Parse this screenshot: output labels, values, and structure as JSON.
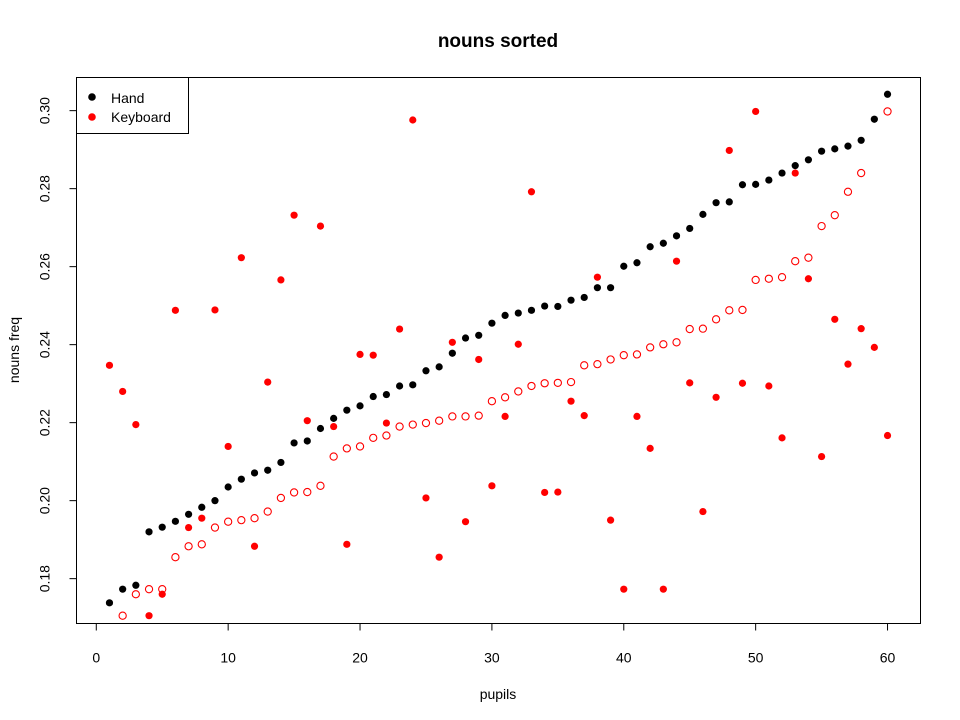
{
  "chart_data": {
    "type": "scatter",
    "title": "nouns sorted",
    "xlabel": "pupils",
    "ylabel": "nouns freq",
    "xlim": [
      -1.5,
      62.5
    ],
    "ylim": [
      0.1685,
      0.3085
    ],
    "x_ticks": [
      0,
      10,
      20,
      30,
      40,
      50,
      60
    ],
    "x_tick_labels": [
      "0",
      "10",
      "20",
      "30",
      "40",
      "50",
      "60"
    ],
    "y_ticks": [
      0.18,
      0.2,
      0.22,
      0.24,
      0.26,
      0.28,
      0.3
    ],
    "y_tick_labels": [
      "0.18",
      "0.20",
      "0.22",
      "0.24",
      "0.26",
      "0.28",
      "0.30"
    ],
    "legend": {
      "position": "top-left",
      "entries": [
        {
          "label": "Hand",
          "color": "#000000"
        },
        {
          "label": "Keyboard",
          "color": "#ff0000"
        }
      ]
    },
    "series": [
      {
        "name": "Hand",
        "color": "#000000",
        "marker": "filled-circle",
        "x": [
          1,
          2,
          3,
          4,
          5,
          6,
          7,
          8,
          9,
          10,
          11,
          12,
          13,
          14,
          15,
          16,
          17,
          18,
          19,
          20,
          21,
          22,
          23,
          24,
          25,
          26,
          27,
          28,
          29,
          30,
          31,
          32,
          33,
          34,
          35,
          36,
          37,
          38,
          39,
          40,
          41,
          42,
          43,
          44,
          45,
          46,
          47,
          48,
          49,
          50,
          51,
          52,
          53,
          54,
          55,
          56,
          57,
          58,
          59,
          60
        ],
        "y": [
          0.1738,
          0.1773,
          0.1783,
          0.192,
          0.1932,
          0.1947,
          0.1965,
          0.1983,
          0.2,
          0.2035,
          0.2055,
          0.2071,
          0.2078,
          0.2098,
          0.2148,
          0.2153,
          0.2185,
          0.2211,
          0.2232,
          0.2243,
          0.2267,
          0.2272,
          0.2294,
          0.2297,
          0.2333,
          0.2343,
          0.2378,
          0.2417,
          0.2424,
          0.2455,
          0.2475,
          0.2481,
          0.2488,
          0.2499,
          0.2498,
          0.2514,
          0.2521,
          0.2546,
          0.2546,
          0.2601,
          0.261,
          0.2651,
          0.266,
          0.2679,
          0.2698,
          0.2734,
          0.2764,
          0.2766,
          0.281,
          0.2811,
          0.2822,
          0.284,
          0.2859,
          0.2874,
          0.2896,
          0.2902,
          0.2909,
          0.2924,
          0.2978,
          0.3042
        ]
      },
      {
        "name": "Keyboard",
        "color": "#ff0000",
        "marker": "filled-circle",
        "x": [
          1,
          2,
          3,
          4,
          5,
          6,
          7,
          8,
          9,
          10,
          11,
          12,
          13,
          14,
          15,
          16,
          17,
          18,
          19,
          20,
          21,
          22,
          23,
          24,
          25,
          26,
          27,
          28,
          29,
          30,
          31,
          32,
          33,
          34,
          35,
          36,
          37,
          38,
          39,
          40,
          41,
          42,
          43,
          44,
          45,
          46,
          47,
          48,
          49,
          50,
          51,
          52,
          53,
          54,
          55,
          56,
          57,
          58,
          59,
          60
        ],
        "y": [
          0.2347,
          0.228,
          0.2195,
          0.1705,
          0.176,
          0.2488,
          0.1931,
          0.1955,
          0.2489,
          0.2139,
          0.2623,
          0.1883,
          0.2304,
          0.2566,
          0.2732,
          0.2205,
          0.2704,
          0.219,
          0.1888,
          0.2375,
          0.2373,
          0.2199,
          0.244,
          0.2976,
          0.2007,
          0.1855,
          0.2406,
          0.1946,
          0.2362,
          0.2038,
          0.2216,
          0.2401,
          0.2792,
          0.2021,
          0.2022,
          0.2255,
          0.2218,
          0.2573,
          0.195,
          0.1773,
          0.2216,
          0.2134,
          0.1773,
          0.2614,
          0.2302,
          0.1972,
          0.2265,
          0.2898,
          0.2301,
          0.2998,
          0.2294,
          0.2161,
          0.284,
          0.2569,
          0.2113,
          0.2465,
          0.235,
          0.2441,
          0.2393,
          0.2167
        ]
      },
      {
        "name": "",
        "color": "#ff0000",
        "marker": "open-circle",
        "x": [
          2,
          3,
          4,
          5,
          6,
          7,
          8,
          9,
          10,
          11,
          12,
          13,
          14,
          15,
          16,
          17,
          18,
          19,
          20,
          21,
          22,
          23,
          24,
          25,
          26,
          27,
          28,
          29,
          30,
          31,
          32,
          33,
          34,
          35,
          36,
          37,
          38,
          39,
          40,
          41,
          42,
          43,
          44,
          45,
          46,
          47,
          48,
          49,
          50,
          51,
          52,
          53,
          54,
          55,
          56,
          57,
          58,
          60
        ],
        "y": [
          0.1705,
          0.176,
          0.1773,
          0.1773,
          0.1855,
          0.1883,
          0.1888,
          0.1931,
          0.1946,
          0.195,
          0.1955,
          0.1972,
          0.2007,
          0.2021,
          0.2022,
          0.2038,
          0.2113,
          0.2134,
          0.2139,
          0.2161,
          0.2167,
          0.219,
          0.2195,
          0.2199,
          0.2205,
          0.2216,
          0.2216,
          0.2218,
          0.2255,
          0.2265,
          0.228,
          0.2294,
          0.2301,
          0.2302,
          0.2304,
          0.2347,
          0.235,
          0.2362,
          0.2373,
          0.2375,
          0.2393,
          0.2401,
          0.2406,
          0.244,
          0.2441,
          0.2465,
          0.2488,
          0.2489,
          0.2566,
          0.2569,
          0.2573,
          0.2614,
          0.2623,
          0.2704,
          0.2732,
          0.2792,
          0.284,
          0.2998
        ]
      }
    ]
  }
}
